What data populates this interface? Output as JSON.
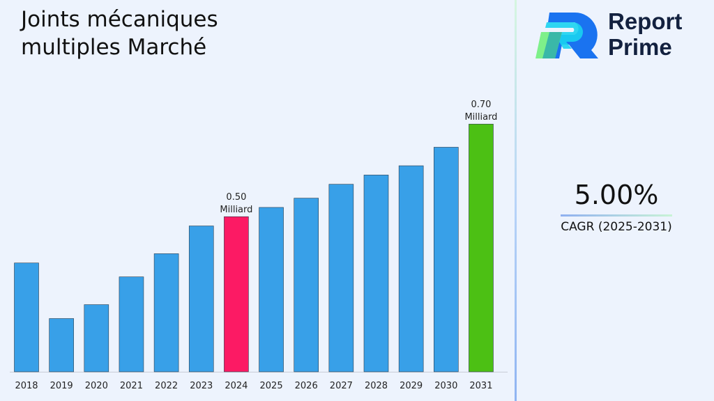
{
  "title_lines": [
    "Joints mécaniques",
    "multiples Marché"
  ],
  "logo": {
    "line1": "Report",
    "line2": "Prime"
  },
  "cagr": {
    "value": "5.00%",
    "label": "CAGR (2025-2031)"
  },
  "colors": {
    "default_bar": "#38a0e8",
    "highlight_2024": "#fc1a64",
    "highlight_2031": "#4cc014"
  },
  "chart_data": {
    "type": "bar",
    "title": "Joints mécaniques multiples Marché",
    "categories": [
      "2018",
      "2019",
      "2020",
      "2021",
      "2022",
      "2023",
      "2024",
      "2025",
      "2026",
      "2027",
      "2028",
      "2029",
      "2030",
      "2031"
    ],
    "values": [
      0.4,
      0.28,
      0.31,
      0.37,
      0.42,
      0.48,
      0.5,
      0.52,
      0.54,
      0.57,
      0.59,
      0.61,
      0.65,
      0.7
    ],
    "unit": "Milliard",
    "data_labels": [
      {
        "category": "2024",
        "value": "0.50",
        "unit": "Milliard"
      },
      {
        "category": "2031",
        "value": "0.70",
        "unit": "Milliard"
      }
    ],
    "ylim": [
      0.165,
      0.7
    ],
    "grid": false,
    "xlabel": "",
    "ylabel": ""
  }
}
